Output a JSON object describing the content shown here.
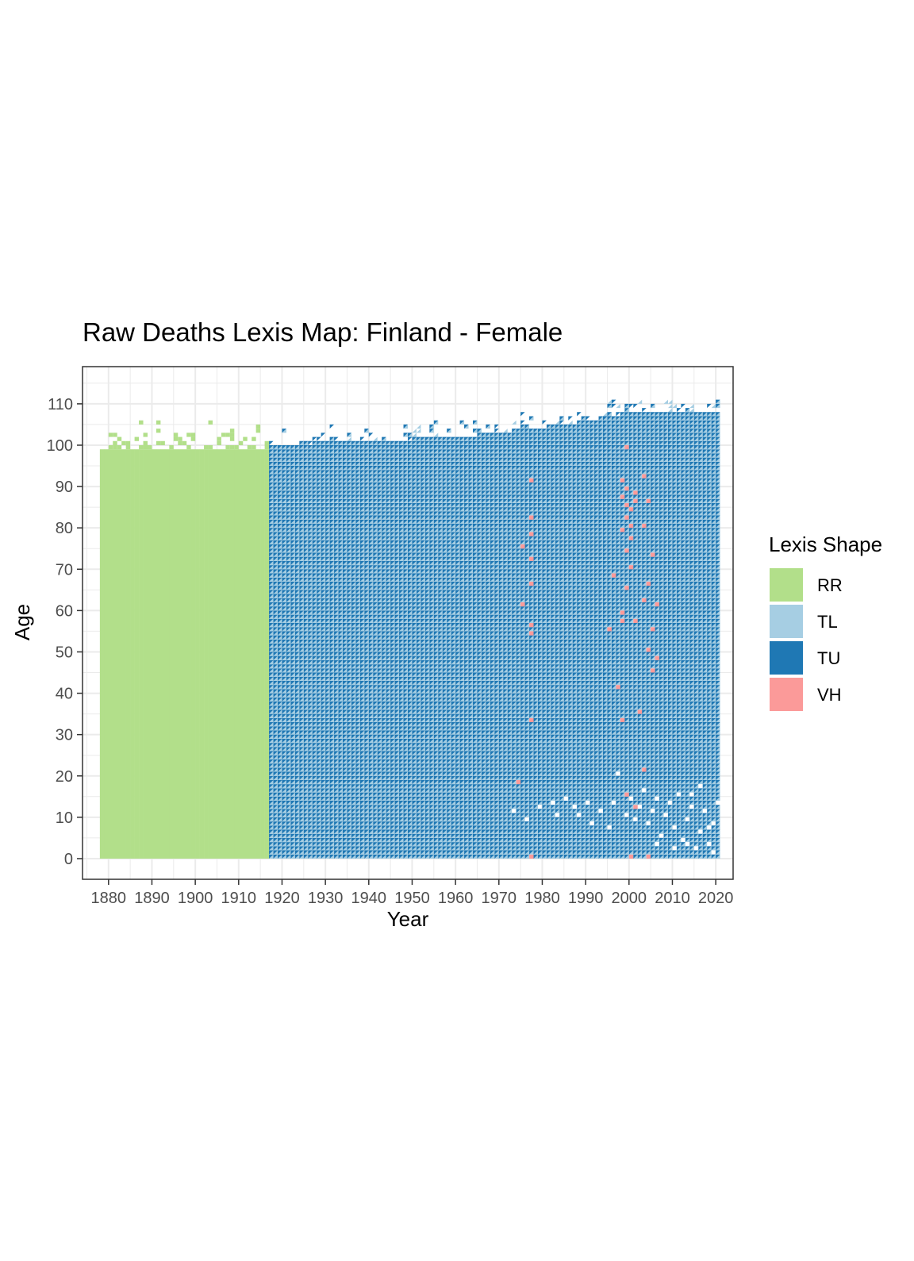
{
  "chart_data": {
    "type": "heatmap",
    "title": "Raw Deaths Lexis Map: Finland - Female",
    "xlabel": "Year",
    "ylabel": "Age",
    "xlim": [
      1874,
      2024
    ],
    "ylim": [
      -5,
      119
    ],
    "x_ticks": [
      1880,
      1890,
      1900,
      1910,
      1920,
      1930,
      1940,
      1950,
      1960,
      1970,
      1980,
      1990,
      2000,
      2010,
      2020
    ],
    "y_ticks": [
      0,
      10,
      20,
      30,
      40,
      50,
      60,
      70,
      80,
      90,
      100,
      110
    ],
    "grid": true,
    "legend": {
      "title": "Lexis Shape",
      "placement": "right",
      "entries": [
        {
          "key": "RR",
          "label": "RR",
          "color": "#b2df8a"
        },
        {
          "key": "TL",
          "label": "TL",
          "color": "#a6cee3"
        },
        {
          "key": "TU",
          "label": "TU",
          "color": "#1f78b4"
        },
        {
          "key": "VH",
          "label": "VH",
          "color": "#fb9a99"
        }
      ]
    },
    "regions": [
      {
        "shape": "RR",
        "years": [
          1878,
          1916
        ],
        "ages": [
          0,
          98
        ],
        "ragged_top_max_age": 105
      },
      {
        "shape": "TL/TU",
        "years": [
          1917,
          2020
        ],
        "ages": [
          0,
          100
        ],
        "ragged_top_max_age": 112,
        "top_age_trend": [
          [
            1917,
            99
          ],
          [
            1960,
            101
          ],
          [
            1985,
            104
          ],
          [
            2000,
            107
          ],
          [
            2020,
            107
          ]
        ]
      }
    ],
    "vh_points": [
      [
        1977,
        91
      ],
      [
        1977,
        82
      ],
      [
        1977,
        78
      ],
      [
        1977,
        72
      ],
      [
        1977,
        66
      ],
      [
        1977,
        56
      ],
      [
        1977,
        54
      ],
      [
        1977,
        33
      ],
      [
        1975,
        75
      ],
      [
        1975,
        61
      ],
      [
        1974,
        18
      ],
      [
        1977,
        0
      ],
      [
        1998,
        91
      ],
      [
        1999,
        89
      ],
      [
        1998,
        87
      ],
      [
        1999,
        85
      ],
      [
        2000,
        84
      ],
      [
        1999,
        82
      ],
      [
        2000,
        80
      ],
      [
        1998,
        79
      ],
      [
        2001,
        88
      ],
      [
        2001,
        86
      ],
      [
        2000,
        77
      ],
      [
        1999,
        74
      ],
      [
        2000,
        70
      ],
      [
        1999,
        99
      ],
      [
        2003,
        92
      ],
      [
        2004,
        86
      ],
      [
        2003,
        80
      ],
      [
        2005,
        73
      ],
      [
        1996,
        68
      ],
      [
        1999,
        65
      ],
      [
        2004,
        66
      ],
      [
        2006,
        61
      ],
      [
        2003,
        62
      ],
      [
        1998,
        59
      ],
      [
        1998,
        57
      ],
      [
        2001,
        57
      ],
      [
        1995,
        55
      ],
      [
        2005,
        55
      ],
      [
        2004,
        50
      ],
      [
        2005,
        45
      ],
      [
        2006,
        48
      ],
      [
        1997,
        41
      ],
      [
        2002,
        35
      ],
      [
        1998,
        33
      ],
      [
        2003,
        21
      ],
      [
        1999,
        15
      ],
      [
        2001,
        12
      ],
      [
        2000,
        0
      ],
      [
        2004,
        0
      ]
    ],
    "empty_low_age_cells": [
      [
        1973,
        11
      ],
      [
        1976,
        9
      ],
      [
        1979,
        12
      ],
      [
        1982,
        13
      ],
      [
        1983,
        10
      ],
      [
        1985,
        14
      ],
      [
        1987,
        12
      ],
      [
        1988,
        10
      ],
      [
        1990,
        13
      ],
      [
        1991,
        8
      ],
      [
        1993,
        11
      ],
      [
        1995,
        7
      ],
      [
        1996,
        13
      ],
      [
        1999,
        10
      ],
      [
        2000,
        14
      ],
      [
        2001,
        9
      ],
      [
        2002,
        12
      ],
      [
        2003,
        16
      ],
      [
        2004,
        8
      ],
      [
        2005,
        11
      ],
      [
        2006,
        14
      ],
      [
        2007,
        5
      ],
      [
        2008,
        10
      ],
      [
        2009,
        13
      ],
      [
        2010,
        7
      ],
      [
        2011,
        15
      ],
      [
        2012,
        4
      ],
      [
        2013,
        9
      ],
      [
        2014,
        12
      ],
      [
        2015,
        2
      ],
      [
        2016,
        6
      ],
      [
        2017,
        11
      ],
      [
        2018,
        3
      ],
      [
        2019,
        8
      ],
      [
        2020,
        13
      ],
      [
        2014,
        15
      ],
      [
        2016,
        17
      ],
      [
        2019,
        1
      ],
      [
        2010,
        2
      ],
      [
        2013,
        3
      ],
      [
        2018,
        7
      ],
      [
        2006,
        3
      ],
      [
        1997,
        20
      ]
    ]
  }
}
